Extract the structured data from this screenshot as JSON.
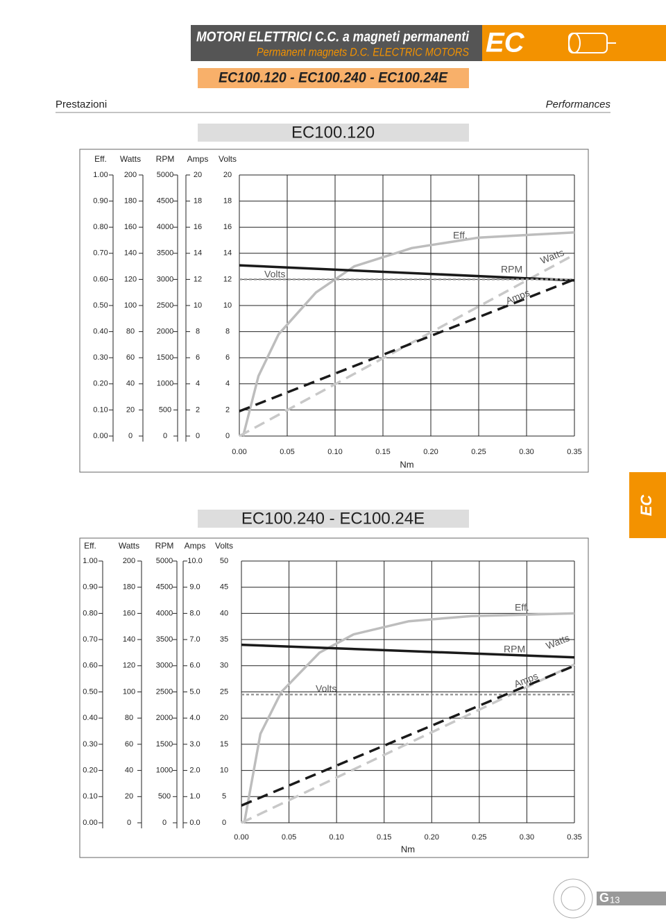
{
  "header": {
    "title_it": "MOTORI ELETTRICI C.C. a magneti permanenti",
    "title_en": "Permanent magnets D.C. ELECTRIC MOTORS",
    "badge": "EC",
    "models": "EC100.120 - EC100.240 - EC100.24E"
  },
  "section": {
    "left": "Prestazioni",
    "right": "Performances"
  },
  "side_tab": "EC",
  "footer": {
    "letter": "G",
    "page": "13"
  },
  "charts": [
    {
      "type": "line",
      "title": "EC100.120",
      "xlabel": "Nm",
      "xlim": [
        0,
        0.35
      ],
      "xticks": [
        {
          "value": 0,
          "label": "0.00"
        },
        {
          "value": 0.05,
          "label": "0.05"
        },
        {
          "value": 0.1,
          "label": "0.10"
        },
        {
          "value": 0.15,
          "label": "0.15"
        },
        {
          "value": 0.2,
          "label": "0.20"
        },
        {
          "value": 0.25,
          "label": "0.25"
        },
        {
          "value": 0.3,
          "label": "0.30"
        },
        {
          "value": 0.35,
          "label": "0.35"
        }
      ],
      "axes": [
        {
          "name": "Eff.",
          "ylim": [
            0,
            1
          ],
          "yticks": [
            {
              "value": 0,
              "label": "0.00"
            },
            {
              "value": 0.1,
              "label": "0.10"
            },
            {
              "value": 0.2,
              "label": "0.20"
            },
            {
              "value": 0.3,
              "label": "0.30"
            },
            {
              "value": 0.4,
              "label": "0.40"
            },
            {
              "value": 0.5,
              "label": "0.50"
            },
            {
              "value": 0.6,
              "label": "0.60"
            },
            {
              "value": 0.7,
              "label": "0.70"
            },
            {
              "value": 0.8,
              "label": "0.80"
            },
            {
              "value": 0.9,
              "label": "0.90"
            },
            {
              "value": 1,
              "label": "1.00"
            }
          ]
        },
        {
          "name": "Watts",
          "ylim": [
            0,
            200
          ],
          "yticks": [
            0,
            20,
            40,
            60,
            80,
            100,
            120,
            140,
            160,
            180,
            200
          ]
        },
        {
          "name": "RPM",
          "ylim": [
            0,
            5000
          ],
          "yticks": [
            0,
            500,
            1000,
            1500,
            2000,
            2500,
            3000,
            3500,
            4000,
            4500,
            5000
          ]
        },
        {
          "name": "Amps",
          "ylim": [
            0,
            20
          ],
          "yticks": [
            0,
            2,
            4,
            6,
            8,
            10,
            12,
            14,
            16,
            18,
            20
          ]
        },
        {
          "name": "Volts",
          "ylim": [
            0,
            20
          ],
          "yticks": [
            0,
            2,
            4,
            6,
            8,
            10,
            12,
            14,
            16,
            18,
            20
          ]
        }
      ],
      "series": [
        {
          "name": "Eff.",
          "axis": 0,
          "color": "#bdbdbd",
          "style": "solid",
          "x": [
            0.004,
            0.02,
            0.041,
            0.08,
            0.12,
            0.18,
            0.25,
            0.35
          ],
          "values": [
            0,
            0.23,
            0.39,
            0.55,
            0.65,
            0.72,
            0.76,
            0.78
          ]
        },
        {
          "name": "Watts",
          "axis": 1,
          "color": "#c8c8c8",
          "style": "dashed",
          "x": [
            0,
            0.35
          ],
          "values": [
            0,
            139
          ]
        },
        {
          "name": "RPM",
          "axis": 2,
          "color": "#1a1a1a",
          "style": "solid",
          "x": [
            0,
            0.35
          ],
          "values": [
            3270,
            2980
          ]
        },
        {
          "name": "Volts",
          "axis": 4,
          "color": "#9a9a9a",
          "style": "dotted",
          "x": [
            0,
            0.35
          ],
          "values": [
            12,
            12
          ]
        },
        {
          "name": "Amps",
          "axis": 3,
          "color": "#1a1a1a",
          "style": "dashed",
          "x": [
            0,
            0.35
          ],
          "values": [
            1.9,
            12
          ]
        }
      ]
    },
    {
      "type": "line",
      "title": "EC100.240 - EC100.24E",
      "xlabel": "Nm",
      "xlim": [
        0,
        0.35
      ],
      "xticks": [
        {
          "value": 0,
          "label": "0.00"
        },
        {
          "value": 0.05,
          "label": "0.05"
        },
        {
          "value": 0.1,
          "label": "0.10"
        },
        {
          "value": 0.15,
          "label": "0.15"
        },
        {
          "value": 0.2,
          "label": "0.20"
        },
        {
          "value": 0.25,
          "label": "0.25"
        },
        {
          "value": 0.3,
          "label": "0.30"
        },
        {
          "value": 0.35,
          "label": "0.35"
        }
      ],
      "axes": [
        {
          "name": "Eff.",
          "ylim": [
            0,
            1
          ],
          "yticks": [
            {
              "value": 0,
              "label": "0.00"
            },
            {
              "value": 0.1,
              "label": "0.10"
            },
            {
              "value": 0.2,
              "label": "0.20"
            },
            {
              "value": 0.3,
              "label": "0.30"
            },
            {
              "value": 0.4,
              "label": "0.40"
            },
            {
              "value": 0.5,
              "label": "0.50"
            },
            {
              "value": 0.6,
              "label": "0.60"
            },
            {
              "value": 0.7,
              "label": "0.70"
            },
            {
              "value": 0.8,
              "label": "0.80"
            },
            {
              "value": 0.9,
              "label": "0.90"
            },
            {
              "value": 1,
              "label": "1.00"
            }
          ]
        },
        {
          "name": "Watts",
          "ylim": [
            0,
            200
          ],
          "yticks": [
            0,
            20,
            40,
            60,
            80,
            100,
            120,
            140,
            160,
            180,
            200
          ]
        },
        {
          "name": "RPM",
          "ylim": [
            0,
            5000
          ],
          "yticks": [
            0,
            500,
            1000,
            1500,
            2000,
            2500,
            3000,
            3500,
            4000,
            4500,
            5000
          ]
        },
        {
          "name": "Amps",
          "ylim": [
            0,
            10
          ],
          "yticks": [
            {
              "value": 0,
              "label": "0.0"
            },
            {
              "value": 1,
              "label": "1.0"
            },
            {
              "value": 2,
              "label": "2.0"
            },
            {
              "value": 3,
              "label": "3.0"
            },
            {
              "value": 4,
              "label": "4.0"
            },
            {
              "value": 5,
              "label": "5.0"
            },
            {
              "value": 6,
              "label": "6.0"
            },
            {
              "value": 7,
              "label": "7.0"
            },
            {
              "value": 8,
              "label": "8.0"
            },
            {
              "value": 9,
              "label": "9.0"
            },
            {
              "value": 10,
              "label": "10.0"
            }
          ]
        },
        {
          "name": "Volts",
          "ylim": [
            0,
            50
          ],
          "yticks": [
            0,
            5,
            10,
            15,
            20,
            25,
            30,
            35,
            40,
            45,
            50
          ]
        }
      ],
      "series": [
        {
          "name": "Eff.",
          "axis": 0,
          "color": "#bdbdbd",
          "style": "solid",
          "x": [
            0.003,
            0.02,
            0.042,
            0.082,
            0.118,
            0.176,
            0.242,
            0.35
          ],
          "values": [
            0,
            0.34,
            0.5,
            0.65,
            0.72,
            0.77,
            0.79,
            0.8
          ]
        },
        {
          "name": "Watts",
          "axis": 1,
          "color": "#c8c8c8",
          "style": "dashed",
          "x": [
            0,
            0.35
          ],
          "values": [
            0,
            121
          ]
        },
        {
          "name": "RPM",
          "axis": 2,
          "color": "#1a1a1a",
          "style": "solid",
          "x": [
            0,
            0.35
          ],
          "values": [
            3400,
            3160
          ]
        },
        {
          "name": "Volts",
          "axis": 4,
          "color": "#9a9a9a",
          "style": "dotted",
          "x": [
            0,
            0.35
          ],
          "values": [
            24.5,
            24.5
          ]
        },
        {
          "name": "Amps",
          "axis": 3,
          "color": "#1a1a1a",
          "style": "dashed",
          "x": [
            0,
            0.35
          ],
          "values": [
            0.66,
            6
          ]
        }
      ]
    }
  ]
}
